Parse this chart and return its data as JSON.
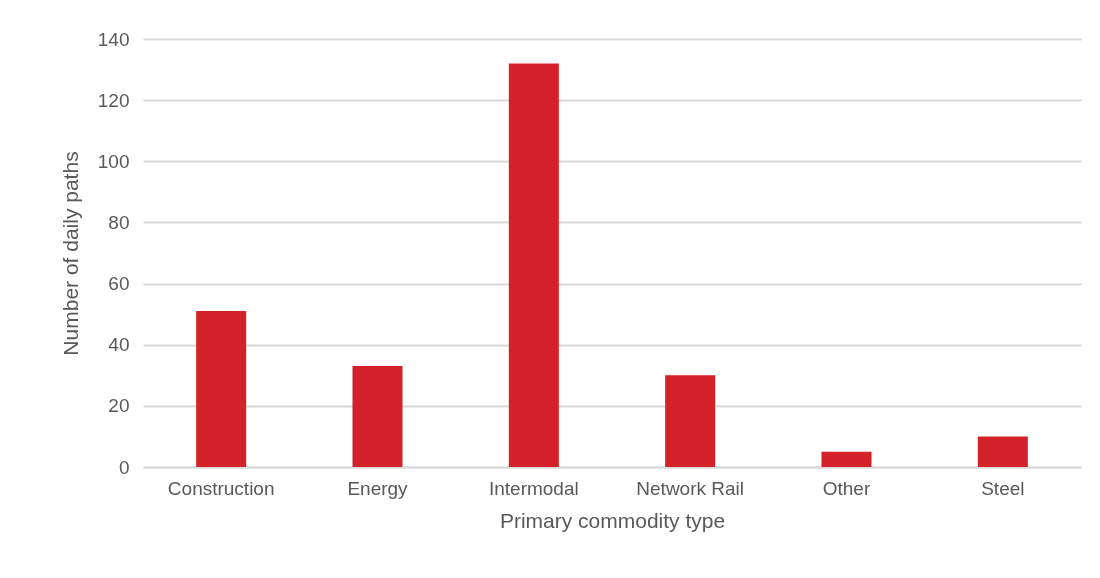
{
  "chart_data": {
    "type": "bar",
    "xlabel": "Primary commodity type",
    "ylabel": "Number of daily paths",
    "categories": [
      "Construction",
      "Energy",
      "Intermodal",
      "Network Rail",
      "Other",
      "Steel"
    ],
    "values": [
      51,
      33,
      132,
      30,
      5,
      10
    ],
    "color": "#d32229",
    "ylim": [
      0,
      140
    ],
    "yticks": [
      0,
      20,
      40,
      60,
      80,
      100,
      120,
      140
    ],
    "grid": "y"
  }
}
